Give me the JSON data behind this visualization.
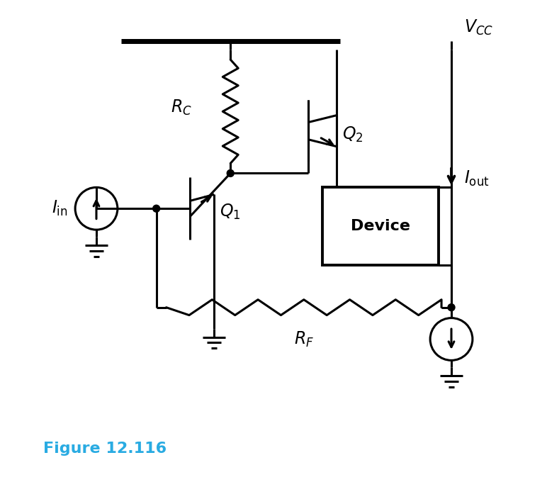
{
  "bg_color": "#FFFFFF",
  "line_color": "#000000",
  "line_width": 2.2,
  "figsize": [
    7.72,
    7.04
  ],
  "dpi": 100,
  "title_text": "Figure 12.116",
  "title_color": "#29ABE2",
  "title_fontsize": 16,
  "vcc_label": "$\\mathit{V}_{\\!CC}$",
  "rc_label": "$\\mathit{R}_{C}$",
  "q1_label": "$\\mathit{Q}_{1}$",
  "q2_label": "$\\mathit{Q}_{2}$",
  "rf_label": "$\\mathit{R}_{F}$",
  "iin_label": "$\\mathit{I}_{\\mathrm{in}}$",
  "iout_label": "$\\mathit{I}_{\\mathrm{out}}$",
  "device_label": "Device"
}
